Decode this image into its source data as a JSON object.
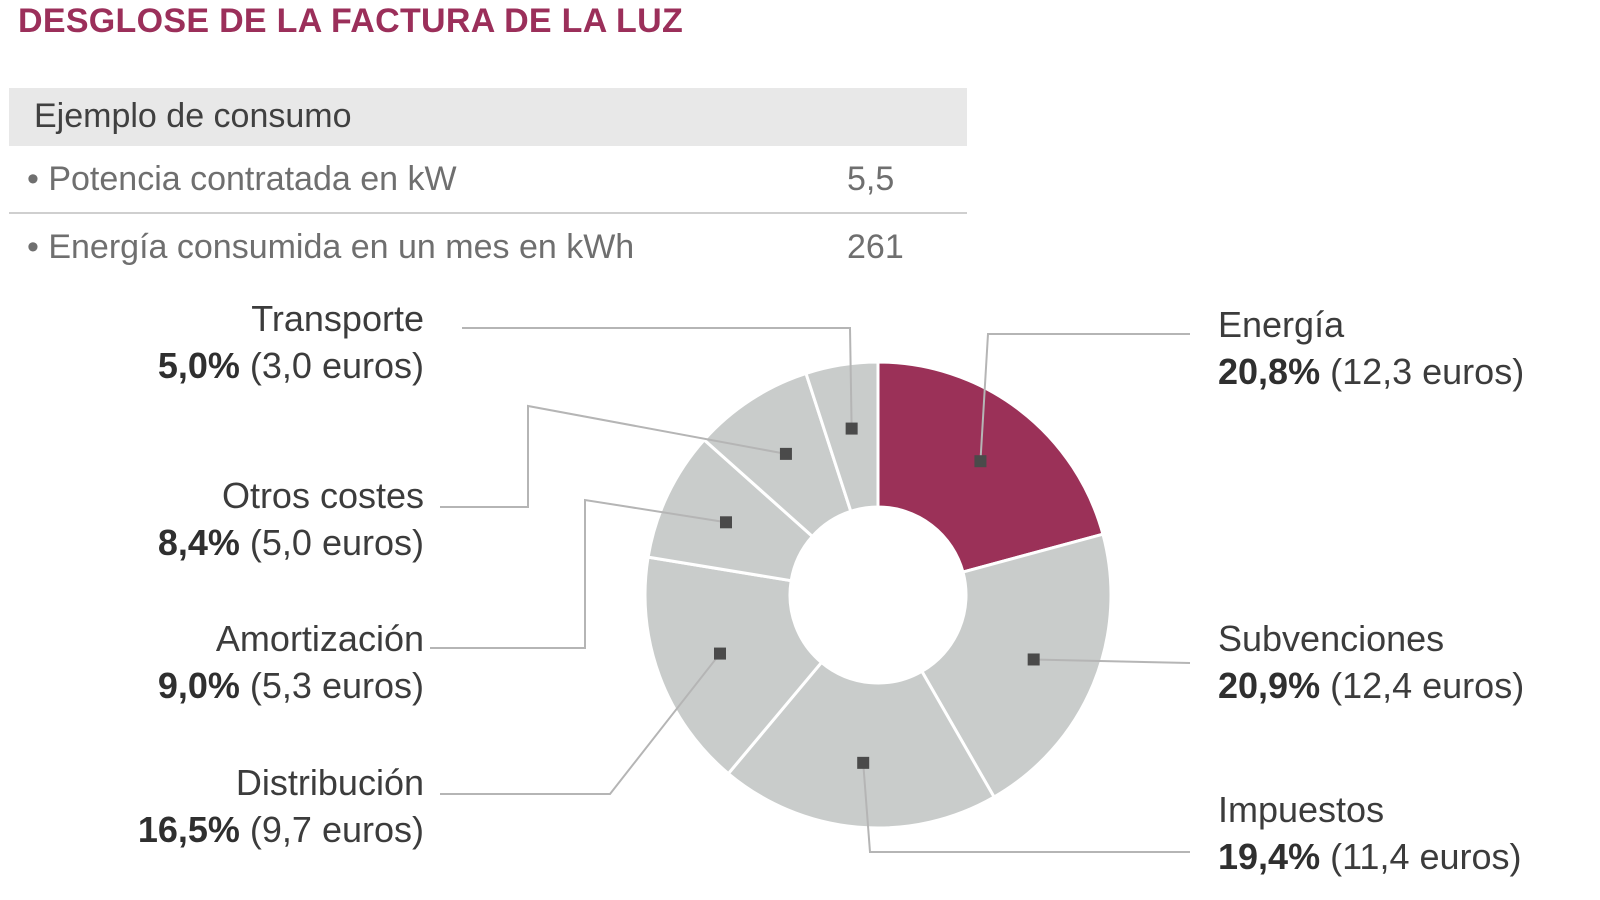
{
  "title": "DESGLOSE DE LA FACTURA DE LA LUZ",
  "table": {
    "header": "Ejemplo de consumo",
    "rows": [
      {
        "label": "• Potencia contratada en kW",
        "value": "5,5"
      },
      {
        "label": "• Energía consumida en un mes en kWh",
        "value": "261"
      }
    ]
  },
  "colors": {
    "accent": "#9b2f5a",
    "slice": "#c9cccb",
    "highlight": "#9b3158"
  },
  "chart_data": {
    "type": "pie",
    "title": "DESGLOSE DE LA FACTURA DE LA LUZ",
    "donut": true,
    "slices": [
      {
        "name": "Energía",
        "percent": 20.8,
        "pct_label": "20,8%",
        "euros": 12.3,
        "euros_label": "(12,3 euros)",
        "highlight": true
      },
      {
        "name": "Subvenciones",
        "percent": 20.9,
        "pct_label": "20,9%",
        "euros": 12.4,
        "euros_label": "(12,4 euros)",
        "highlight": false
      },
      {
        "name": "Impuestos",
        "percent": 19.4,
        "pct_label": "19,4%",
        "euros": 11.4,
        "euros_label": "(11,4 euros)",
        "highlight": false
      },
      {
        "name": "Distribución",
        "percent": 16.5,
        "pct_label": "16,5%",
        "euros": 9.7,
        "euros_label": "(9,7 euros)",
        "highlight": false
      },
      {
        "name": "Amortización",
        "percent": 9.0,
        "pct_label": "9,0%",
        "euros": 5.3,
        "euros_label": "(5,3 euros)",
        "highlight": false
      },
      {
        "name": "Otros costes",
        "percent": 8.4,
        "pct_label": "8,4%",
        "euros": 5.0,
        "euros_label": "(5,0 euros)",
        "highlight": false
      },
      {
        "name": "Transporte",
        "percent": 5.0,
        "pct_label": "5,0%",
        "euros": 3.0,
        "euros_label": "(3,0 euros)",
        "highlight": false
      }
    ]
  }
}
